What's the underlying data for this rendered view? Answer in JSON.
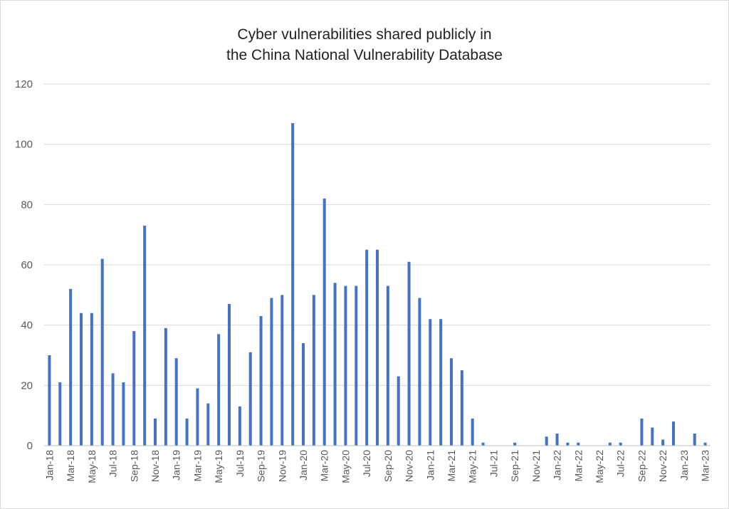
{
  "chart_data": {
    "type": "bar",
    "title_line1": "Cyber vulnerabilities shared publicly in",
    "title_line2": "the China National Vulnerability Database",
    "xlabel": "",
    "ylabel": "",
    "ylim": [
      0,
      120
    ],
    "yticks": [
      0,
      20,
      40,
      60,
      80,
      100,
      120
    ],
    "grid": true,
    "legend": "none",
    "bar_color": "#4472C4",
    "grid_color": "#d9d9d9",
    "categories": [
      "Jan-18",
      "Feb-18",
      "Mar-18",
      "Apr-18",
      "May-18",
      "Jun-18",
      "Jul-18",
      "Aug-18",
      "Sep-18",
      "Oct-18",
      "Nov-18",
      "Dec-18",
      "Jan-19",
      "Feb-19",
      "Mar-19",
      "Apr-19",
      "May-19",
      "Jun-19",
      "Jul-19",
      "Aug-19",
      "Sep-19",
      "Oct-19",
      "Nov-19",
      "Dec-19",
      "Jan-20",
      "Feb-20",
      "Mar-20",
      "Apr-20",
      "May-20",
      "Jun-20",
      "Jul-20",
      "Aug-20",
      "Sep-20",
      "Oct-20",
      "Nov-20",
      "Dec-20",
      "Jan-21",
      "Feb-21",
      "Mar-21",
      "Apr-21",
      "May-21",
      "Jun-21",
      "Jul-21",
      "Aug-21",
      "Sep-21",
      "Oct-21",
      "Nov-21",
      "Dec-21",
      "Jan-22",
      "Feb-22",
      "Mar-22",
      "Apr-22",
      "May-22",
      "Jun-22",
      "Jul-22",
      "Aug-22",
      "Sep-22",
      "Oct-22",
      "Nov-22",
      "Dec-22",
      "Jan-23",
      "Feb-23",
      "Mar-23"
    ],
    "visible_tick_labels": [
      "Jan-18",
      "Mar-18",
      "May-18",
      "Jul-18",
      "Sep-18",
      "Nov-18",
      "Jan-19",
      "Mar-19",
      "May-19",
      "Jul-19",
      "Sep-19",
      "Nov-19",
      "Jan-20",
      "Mar-20",
      "May-20",
      "Jul-20",
      "Sep-20",
      "Nov-20",
      "Jan-21",
      "Mar-21",
      "May-21",
      "Jul-21",
      "Sep-21",
      "Nov-21",
      "Jan-22",
      "Mar-22",
      "May-22",
      "Jul-22",
      "Sep-22",
      "Nov-22",
      "Jan-23",
      "Mar-23"
    ],
    "values": [
      30,
      21,
      52,
      44,
      44,
      62,
      24,
      21,
      38,
      73,
      9,
      39,
      29,
      9,
      19,
      14,
      37,
      47,
      13,
      31,
      43,
      49,
      50,
      107,
      34,
      50,
      82,
      54,
      53,
      53,
      65,
      65,
      53,
      23,
      61,
      49,
      42,
      42,
      29,
      25,
      9,
      1,
      0,
      0,
      1,
      0,
      0,
      3,
      4,
      1,
      1,
      0,
      0,
      1,
      1,
      0,
      9,
      6,
      2,
      8,
      0,
      4,
      1
    ]
  }
}
